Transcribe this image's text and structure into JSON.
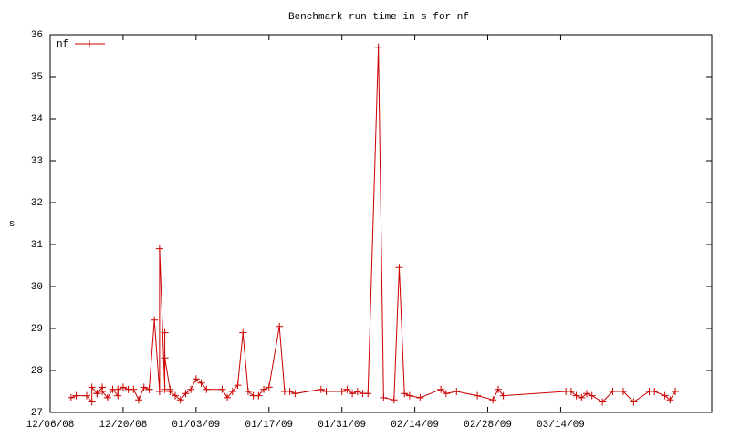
{
  "chart_data": {
    "type": "line",
    "title": "Benchmark run time in s for nf",
    "ylabel": "s",
    "x": [
      "2008-12-10",
      "2008-12-11",
      "2008-12-13",
      "2008-12-14",
      "2008-12-14",
      "2008-12-15",
      "2008-12-15",
      "2008-12-16",
      "2008-12-16",
      "2008-12-17",
      "2008-12-18",
      "2008-12-19",
      "2008-12-19",
      "2008-12-20",
      "2008-12-21",
      "2008-12-22",
      "2008-12-23",
      "2008-12-24",
      "2008-12-25",
      "2008-12-25",
      "2008-12-26",
      "2008-12-27",
      "2008-12-27",
      "2008-12-28",
      "2008-12-28",
      "2008-12-28",
      "2008-12-29",
      "2008-12-29",
      "2008-12-30",
      "2008-12-31",
      "2009-01-01",
      "2009-01-02",
      "2009-01-03",
      "2009-01-04",
      "2009-01-05",
      "2009-01-08",
      "2009-01-09",
      "2009-01-10",
      "2009-01-11",
      "2009-01-12",
      "2009-01-13",
      "2009-01-14",
      "2009-01-15",
      "2009-01-16",
      "2009-01-17",
      "2009-01-19",
      "2009-01-20",
      "2009-01-21",
      "2009-01-22",
      "2009-01-27",
      "2009-01-28",
      "2009-01-31",
      "2009-02-01",
      "2009-02-02",
      "2009-02-03",
      "2009-02-04",
      "2009-02-05",
      "2009-02-07",
      "2009-02-08",
      "2009-02-10",
      "2009-02-11",
      "2009-02-12",
      "2009-02-13",
      "2009-02-15",
      "2009-02-19",
      "2009-02-20",
      "2009-02-22",
      "2009-02-26",
      "2009-03-01",
      "2009-03-02",
      "2009-03-03",
      "2009-03-15",
      "2009-03-16",
      "2009-03-17",
      "2009-03-18",
      "2009-03-19",
      "2009-03-20",
      "2009-03-22",
      "2009-03-24",
      "2009-03-26",
      "2009-03-28",
      "2009-03-31",
      "2009-04-01",
      "2009-04-03",
      "2009-04-04",
      "2009-04-05"
    ],
    "series": [
      {
        "name": "nf",
        "color": "#cc0000",
        "values": [
          27.35,
          27.4,
          27.4,
          27.25,
          27.6,
          27.45,
          27.45,
          27.6,
          27.5,
          27.35,
          27.55,
          27.4,
          27.55,
          27.6,
          27.55,
          27.55,
          27.3,
          27.6,
          27.55,
          27.55,
          29.2,
          27.5,
          30.9,
          27.55,
          28.9,
          28.3,
          27.55,
          27.5,
          27.4,
          27.3,
          27.45,
          27.55,
          27.8,
          27.7,
          27.55,
          27.55,
          27.35,
          27.5,
          27.65,
          28.9,
          27.5,
          27.4,
          27.4,
          27.55,
          27.6,
          29.05,
          27.5,
          27.5,
          27.45,
          27.55,
          27.5,
          27.5,
          27.55,
          27.45,
          27.5,
          27.45,
          27.45,
          35.7,
          27.35,
          27.3,
          30.45,
          27.45,
          27.4,
          27.35,
          27.55,
          27.45,
          27.5,
          27.4,
          27.3,
          27.55,
          27.4,
          27.5,
          27.5,
          27.4,
          27.35,
          27.45,
          27.4,
          27.25,
          27.5,
          27.5,
          27.25,
          27.5,
          27.5,
          27.4,
          27.3,
          27.5
        ]
      }
    ],
    "xlim": [
      "2008-12-06",
      "2009-04-12"
    ],
    "xticks": [
      {
        "value": "2008-12-06",
        "label": "12/06/08"
      },
      {
        "value": "2008-12-20",
        "label": "12/20/08"
      },
      {
        "value": "2009-01-03",
        "label": "01/03/09"
      },
      {
        "value": "2009-01-17",
        "label": "01/17/09"
      },
      {
        "value": "2009-01-31",
        "label": "01/31/09"
      },
      {
        "value": "2009-02-14",
        "label": "02/14/09"
      },
      {
        "value": "2009-02-28",
        "label": "02/28/09"
      },
      {
        "value": "2009-03-14",
        "label": "03/14/09"
      }
    ],
    "ylim": [
      27,
      36
    ],
    "yticks": [
      27,
      28,
      29,
      30,
      31,
      32,
      33,
      34,
      35,
      36
    ],
    "legend": "top-left",
    "grid": false
  }
}
